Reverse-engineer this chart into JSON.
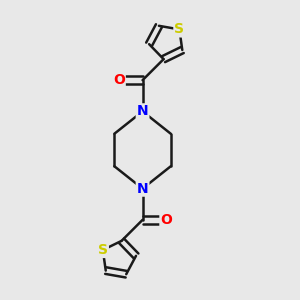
{
  "background_color": "#e8e8e8",
  "bond_color": "#1a1a1a",
  "N_color": "#0000ff",
  "O_color": "#ff0000",
  "S_color": "#cccc00",
  "bond_width": 1.8,
  "font_size_atom": 10,
  "fig_size": [
    3.0,
    3.0
  ],
  "dpi": 100,
  "xlim": [
    -1.4,
    1.6
  ],
  "ylim": [
    -2.1,
    1.9
  ]
}
